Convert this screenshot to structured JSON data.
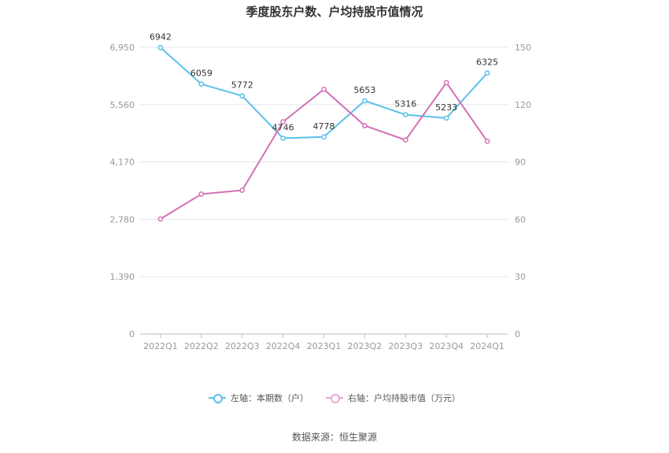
{
  "chart_data": {
    "type": "line",
    "title": "季度股东户数、户均持股市值情况",
    "categories": [
      "2022Q1",
      "2022Q2",
      "2022Q3",
      "2022Q4",
      "2023Q1",
      "2023Q2",
      "2023Q3",
      "2023Q4",
      "2024Q1"
    ],
    "left_axis": {
      "ylim": [
        0,
        6950
      ],
      "ticks": [
        "0",
        "1,390",
        "2,780",
        "4,170",
        "5,560",
        "6,950"
      ]
    },
    "right_axis": {
      "ylim": [
        0,
        150
      ],
      "ticks": [
        "0",
        "30",
        "60",
        "90",
        "120",
        "150"
      ]
    },
    "series": [
      {
        "name": "左轴：本期数（户）",
        "axis": "left",
        "color": "#5bc0eb",
        "values": [
          6942,
          6059,
          5772,
          4746,
          4778,
          5653,
          5316,
          5233,
          6325
        ],
        "labels": [
          "6942",
          "6059",
          "5772",
          "4746",
          "4778",
          "5653",
          "5316",
          "5233",
          "6325"
        ]
      },
      {
        "name": "右轴：户均持股市值（万元）",
        "axis": "right",
        "color": "#d36fb5",
        "values": [
          60.2,
          73.2,
          75.2,
          111.0,
          128.0,
          109.0,
          101.5,
          131.5,
          100.8
        ]
      }
    ],
    "grid": true,
    "legend_position": "bottom"
  },
  "footer": {
    "source": "数据来源：恒生聚源"
  }
}
